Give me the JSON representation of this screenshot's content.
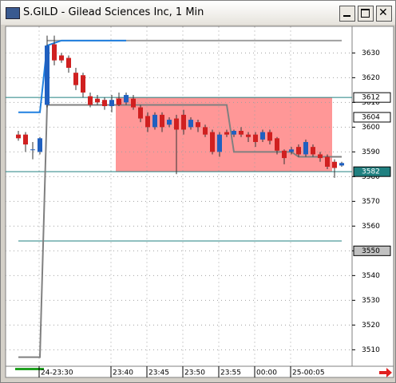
{
  "window_title": "S.GILD - Gilead Sciences Inc, 1 Min",
  "chart_data": {
    "type": "candlestick",
    "categories": [
      null,
      null,
      null,
      null,
      "24-23:30",
      null,
      null,
      null,
      null,
      null,
      null,
      null,
      null,
      null,
      "23:40",
      null,
      null,
      null,
      null,
      "23:45",
      null,
      null,
      null,
      null,
      "23:50",
      null,
      null,
      null,
      null,
      "23:55",
      null,
      null,
      null,
      null,
      "00:00",
      null,
      null,
      null,
      null,
      "25-00:05",
      null,
      null,
      null,
      null,
      null,
      null
    ],
    "open": [
      3597,
      3597,
      3591,
      3590,
      3609,
      3633.5,
      3629,
      3628,
      3622,
      3621,
      3612.5,
      3611.5,
      3611,
      3608.5,
      3611.5,
      3610,
      3611.5,
      3608,
      3604.5,
      3600,
      3605,
      3601,
      3603.5,
      3605,
      3600,
      3602,
      3600,
      3598,
      3590,
      3598,
      3597,
      3598.5,
      3597,
      3597,
      3595,
      3598,
      3595.5,
      3590.5,
      3590,
      3592,
      3589,
      3592,
      3589,
      3588,
      3586,
      3584.5
    ],
    "high": [
      3598.5,
      3598,
      3594,
      3596,
      3637,
      3637,
      3630,
      3629,
      3624,
      3622,
      3614,
      3613,
      3612,
      3613,
      3614,
      3614,
      3613,
      3609,
      3606,
      3606,
      3606,
      3604,
      3605,
      3607,
      3604,
      3603,
      3601,
      3599,
      3598,
      3599,
      3599,
      3600,
      3598,
      3598,
      3599,
      3599,
      3596,
      3591,
      3592,
      3593,
      3595,
      3593,
      3590,
      3589,
      3587,
      3586
    ],
    "low": [
      3594.5,
      3590,
      3587,
      3589,
      3608,
      3625,
      3626,
      3622,
      3615,
      3612,
      3608,
      3609,
      3607,
      3606,
      3608.5,
      3609,
      3607,
      3602,
      3598,
      3599,
      3598,
      3600,
      3581,
      3597,
      3599,
      3598,
      3596,
      3589,
      3588,
      3596,
      3596,
      3596,
      3594,
      3592,
      3594,
      3593,
      3589,
      3585,
      3589,
      3588,
      3588,
      3588,
      3586,
      3583,
      3579.5,
      3584
    ],
    "close": [
      3595.5,
      3593,
      3591,
      3595.5,
      3633,
      3627,
      3627,
      3624,
      3617,
      3614,
      3609,
      3610,
      3608.5,
      3611,
      3609,
      3613,
      3608,
      3603.5,
      3600,
      3605,
      3600,
      3603,
      3599,
      3599,
      3603,
      3600,
      3597,
      3590,
      3597,
      3597,
      3598.5,
      3597,
      3596,
      3594,
      3598,
      3594.5,
      3590.5,
      3587.5,
      3591,
      3589,
      3594,
      3589,
      3587.5,
      3584,
      3583.5,
      3585.5
    ],
    "up_color": "#2060c0",
    "down_color": "#d02020",
    "lines": [
      {
        "color": "#808080",
        "values": [
          3507,
          3507,
          3507,
          3507,
          3609,
          3609,
          3609,
          3609,
          3609,
          3609,
          3609,
          3609,
          3609,
          3609,
          3609,
          3609,
          3609,
          3609,
          3609,
          3609,
          3609,
          3609,
          3609,
          3609,
          3609,
          3609,
          3609,
          3609,
          3609,
          3609,
          3590,
          3590,
          3590,
          3590,
          3590,
          3590,
          3590,
          3590,
          3590,
          3588,
          3588,
          3588,
          3588,
          3588,
          3588,
          3588
        ]
      },
      {
        "color": "#a0a0a0",
        "values": [
          null,
          null,
          null,
          null,
          3635,
          3635,
          3635,
          3635,
          3635,
          3635,
          3635,
          3635,
          3635,
          3635,
          3635,
          3635,
          3635,
          3635,
          3635,
          3635,
          3635,
          3635,
          3635,
          3635,
          3635,
          3635,
          3635,
          3635,
          3635,
          3635,
          3635,
          3635,
          3635,
          3635,
          3635,
          3635,
          3635,
          3635,
          3635,
          3635,
          3635,
          3635,
          3635,
          3635,
          3635,
          3635
        ]
      },
      {
        "color": "#2080e0",
        "values": [
          3606,
          3606,
          3606,
          3606,
          3633,
          3634,
          3635,
          3635,
          3635,
          3635,
          3635,
          3635,
          3635,
          3635,
          3635,
          3635,
          null,
          null,
          null,
          null,
          null,
          null,
          null,
          null,
          null,
          null,
          null,
          null,
          null,
          null,
          null,
          null,
          null,
          null,
          null,
          null,
          null,
          null,
          null,
          null,
          null,
          null,
          null,
          null,
          null,
          null
        ]
      }
    ],
    "highlight": {
      "from": 14,
      "to": 44,
      "low": 3582,
      "high": 3612,
      "color": "#ff6060"
    },
    "hlines": [
      {
        "value": 3612,
        "full": true,
        "color": "#208080"
      },
      {
        "value": 3582,
        "full": true,
        "color": "#208080"
      },
      {
        "value": 3554,
        "full": false,
        "color": "#208080"
      }
    ],
    "price_markers": [
      {
        "value": 3612,
        "fill": "#ffffff",
        "text_color": "#000000"
      },
      {
        "value": 3604,
        "fill": "#ffffff",
        "text_color": "#000000"
      },
      {
        "value": 3582,
        "fill": "#208080",
        "text_color": "#ffffff"
      },
      {
        "value": 3550,
        "fill": "#c0c0c0",
        "text_color": "#000000"
      }
    ],
    "ylim": [
      3503.5,
      3640.6
    ],
    "yticks": [
      3510,
      3520,
      3530,
      3540,
      3550,
      3560,
      3570,
      3580,
      3590,
      3600,
      3610,
      3620,
      3630
    ],
    "grid": true
  }
}
